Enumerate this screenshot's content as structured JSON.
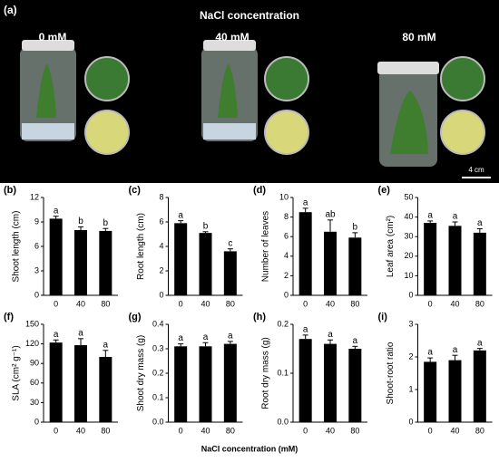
{
  "photo_panel": {
    "panel_label": "(a)",
    "title": "NaCl concentration",
    "labels": [
      "0 mM",
      "40 mM",
      "80 mM"
    ],
    "scale_bar": "4 cm"
  },
  "x_axis_title": "NaCl concentration (mM)",
  "chart_data": [
    {
      "type": "bar",
      "label": "(b)",
      "y_label": "Shoot length (cm)",
      "categories": [
        "0",
        "40",
        "80"
      ],
      "values": [
        9.4,
        8.0,
        7.9
      ],
      "errors": [
        0.3,
        0.4,
        0.3
      ],
      "letters": [
        "a",
        "b",
        "b"
      ],
      "color": "#000000",
      "ylim": [
        0,
        12
      ],
      "yticks": [
        0,
        3,
        6,
        9,
        12
      ]
    },
    {
      "type": "bar",
      "label": "(c)",
      "y_label": "Root length (cm)",
      "categories": [
        "0",
        "40",
        "80"
      ],
      "values": [
        5.9,
        5.1,
        3.6
      ],
      "errors": [
        0.2,
        0.1,
        0.2
      ],
      "letters": [
        "a",
        "b",
        "c"
      ],
      "color": "#000000",
      "ylim": [
        0,
        8
      ],
      "yticks": [
        0,
        2,
        4,
        6,
        8
      ]
    },
    {
      "type": "bar",
      "label": "(d)",
      "y_label": "Number of leaves",
      "categories": [
        "0",
        "40",
        "80"
      ],
      "values": [
        8.5,
        6.5,
        5.9
      ],
      "errors": [
        0.4,
        1.2,
        0.5
      ],
      "letters": [
        "a",
        "ab",
        "b"
      ],
      "color": "#000000",
      "ylim": [
        0,
        10
      ],
      "yticks": [
        0,
        2,
        4,
        6,
        8,
        10
      ]
    },
    {
      "type": "bar",
      "label": "(e)",
      "y_label": "Leaf area (cm²)",
      "categories": [
        "0",
        "40",
        "80"
      ],
      "values": [
        37,
        35.5,
        32
      ],
      "errors": [
        1,
        2,
        2
      ],
      "letters": [
        "a",
        "a",
        "a"
      ],
      "color": "#000000",
      "ylim": [
        0,
        50
      ],
      "yticks": [
        0,
        10,
        20,
        30,
        40,
        50
      ]
    },
    {
      "type": "bar",
      "label": "(f)",
      "y_label": "SLA (cm² g⁻¹)",
      "categories": [
        "0",
        "40",
        "80"
      ],
      "values": [
        122,
        118,
        100
      ],
      "errors": [
        4,
        10,
        10
      ],
      "letters": [
        "a",
        "a",
        "a"
      ],
      "color": "#000000",
      "ylim": [
        0,
        150
      ],
      "yticks": [
        0,
        30,
        60,
        90,
        120,
        150
      ]
    },
    {
      "type": "bar",
      "label": "(g)",
      "y_label": "Shoot dry mass (g)",
      "categories": [
        "0",
        "40",
        "80"
      ],
      "values": [
        0.31,
        0.31,
        0.32
      ],
      "errors": [
        0.01,
        0.015,
        0.01
      ],
      "letters": [
        "a",
        "a",
        "a"
      ],
      "color": "#000000",
      "ylim": [
        0,
        0.4
      ],
      "yticks": [
        {
          "value": 0,
          "label": "0.0"
        },
        0.1,
        0.2,
        0.3,
        0.4
      ]
    },
    {
      "type": "bar",
      "label": "(h)",
      "y_label": "Root dry mass (g)",
      "categories": [
        "0",
        "40",
        "80"
      ],
      "values": [
        0.17,
        0.16,
        0.15
      ],
      "errors": [
        0.008,
        0.008,
        0.005
      ],
      "letters": [
        "a",
        "a",
        "a"
      ],
      "color": "#000000",
      "ylim": [
        0,
        0.2
      ],
      "yticks": [
        {
          "value": 0,
          "label": "0.0"
        },
        0.1,
        0.2
      ]
    },
    {
      "type": "bar",
      "label": "(i)",
      "y_label": "Shoot-root ratio",
      "categories": [
        "0",
        "40",
        "80"
      ],
      "values": [
        1.85,
        1.9,
        2.2
      ],
      "errors": [
        0.12,
        0.15,
        0.06
      ],
      "letters": [
        "a",
        "a",
        "a"
      ],
      "color": "#000000",
      "ylim": [
        0,
        3
      ],
      "yticks": [
        0,
        1,
        2,
        3
      ]
    }
  ]
}
